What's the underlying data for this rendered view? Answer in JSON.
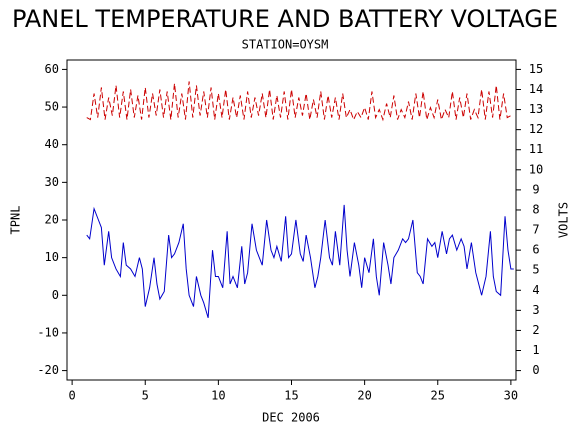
{
  "chart_data": {
    "type": "line",
    "title": "PANEL TEMPERATURE AND BATTERY VOLTAGE",
    "subtitle": "STATION=OYSM",
    "x_label": "DEC 2006",
    "y_label": "TPNL",
    "y2_label": "VOLTS",
    "xlim": [
      -0.35,
      30.35
    ],
    "xticks": [
      0,
      5,
      10,
      15,
      20,
      25,
      30
    ],
    "ylim": [
      -22.5,
      62.5
    ],
    "yticks": [
      -20,
      -10,
      0,
      10,
      20,
      30,
      40,
      50,
      60
    ],
    "y2lim": [
      -0.46875,
      15.46875
    ],
    "y2ticks": [
      0,
      1,
      2,
      3,
      4,
      5,
      6,
      7,
      8,
      9,
      10,
      11,
      12,
      13,
      14,
      15
    ],
    "series": [
      {
        "name": "TPNL",
        "color": "#0000cc",
        "axis": "y",
        "x": [
          1,
          1.2,
          1.5,
          1.8,
          2,
          2.2,
          2.5,
          2.7,
          3,
          3.3,
          3.5,
          3.7,
          4,
          4.3,
          4.6,
          4.8,
          5,
          5.3,
          5.6,
          5.8,
          6,
          6.3,
          6.6,
          6.8,
          7,
          7.3,
          7.6,
          7.8,
          8,
          8.3,
          8.5,
          8.8,
          9,
          9.3,
          9.6,
          9.8,
          10,
          10.3,
          10.6,
          10.8,
          11,
          11.3,
          11.6,
          11.8,
          12,
          12.3,
          12.6,
          12.8,
          13,
          13.3,
          13.6,
          13.8,
          14,
          14.3,
          14.6,
          14.8,
          15,
          15.3,
          15.6,
          15.8,
          16,
          16.3,
          16.6,
          16.8,
          17,
          17.3,
          17.6,
          17.8,
          18,
          18.3,
          18.6,
          18.8,
          19,
          19.3,
          19.6,
          19.8,
          20,
          20.3,
          20.6,
          20.8,
          21,
          21.3,
          21.6,
          21.8,
          22,
          22.3,
          22.6,
          22.8,
          23,
          23.3,
          23.6,
          23.8,
          24,
          24.3,
          24.6,
          24.8,
          25,
          25.3,
          25.6,
          25.8,
          26,
          26.3,
          26.6,
          26.8,
          27,
          27.3,
          27.6,
          27.8,
          28,
          28.3,
          28.6,
          28.8,
          29,
          29.3,
          29.6,
          29.8,
          30,
          30.2
        ],
        "values": [
          16,
          15,
          23,
          20,
          18,
          8,
          17,
          10,
          7,
          5,
          14,
          8,
          7,
          5,
          10,
          7,
          -3,
          2,
          10,
          3,
          -1,
          1,
          16,
          10,
          11,
          14,
          19,
          7,
          0,
          -3,
          5,
          0,
          -2,
          -6,
          12,
          5,
          5,
          2,
          17,
          3,
          5,
          2,
          13,
          3,
          6,
          19,
          12,
          10,
          8,
          20,
          12,
          10,
          13,
          9,
          21,
          10,
          11,
          20,
          11,
          9,
          16,
          10,
          2,
          5,
          10,
          20,
          10,
          8,
          17,
          8,
          24,
          12,
          5,
          14,
          8,
          2,
          10,
          6,
          15,
          5,
          0,
          14,
          8,
          3,
          10,
          12,
          15,
          14,
          15,
          20,
          6,
          5,
          3,
          15,
          13,
          14,
          10,
          17,
          11,
          15,
          16,
          12,
          15,
          13,
          7,
          14,
          6,
          3,
          0,
          5,
          17,
          5,
          1,
          0,
          21,
          12,
          7,
          7
        ]
      },
      {
        "name": "VOLTS",
        "color": "#cc0000",
        "axis": "y2",
        "dashed": true,
        "x": [
          1,
          1.25,
          1.5,
          1.75,
          2,
          2.25,
          2.5,
          2.75,
          3,
          3.25,
          3.5,
          3.75,
          4,
          4.25,
          4.5,
          4.75,
          5,
          5.25,
          5.5,
          5.75,
          6,
          6.25,
          6.5,
          6.75,
          7,
          7.25,
          7.5,
          7.75,
          8,
          8.25,
          8.5,
          8.75,
          9,
          9.25,
          9.5,
          9.75,
          10,
          10.25,
          10.5,
          10.75,
          11,
          11.25,
          11.5,
          11.75,
          12,
          12.25,
          12.5,
          12.75,
          13,
          13.25,
          13.5,
          13.75,
          14,
          14.25,
          14.5,
          14.75,
          15,
          15.25,
          15.5,
          15.75,
          16,
          16.25,
          16.5,
          16.75,
          17,
          17.25,
          17.5,
          17.75,
          18,
          18.25,
          18.5,
          18.75,
          19,
          19.25,
          19.5,
          19.75,
          20,
          20.25,
          20.5,
          20.75,
          21,
          21.25,
          21.5,
          21.75,
          22,
          22.25,
          22.5,
          22.75,
          23,
          23.25,
          23.5,
          23.75,
          24,
          24.25,
          24.5,
          24.75,
          25,
          25.25,
          25.5,
          25.75,
          26,
          26.25,
          26.5,
          26.75,
          27,
          27.25,
          27.5,
          27.75,
          28,
          28.25,
          28.5,
          28.75,
          29,
          29.25,
          29.5,
          29.75,
          30
        ],
        "values": [
          12.6,
          12.5,
          13.8,
          12.6,
          14.1,
          12.5,
          13.6,
          12.7,
          14.2,
          12.6,
          13.9,
          12.5,
          14.0,
          12.6,
          13.7,
          12.5,
          14.1,
          12.6,
          13.8,
          12.7,
          14.0,
          12.6,
          13.9,
          12.5,
          14.3,
          12.6,
          13.8,
          12.5,
          14.4,
          12.6,
          14.2,
          12.7,
          13.9,
          12.6,
          14.1,
          12.5,
          13.8,
          12.6,
          14.0,
          12.5,
          13.6,
          12.6,
          13.7,
          12.5,
          13.9,
          12.6,
          13.6,
          12.7,
          13.8,
          12.6,
          14.0,
          12.5,
          13.7,
          12.6,
          13.9,
          12.5,
          14.0,
          12.6,
          13.6,
          12.7,
          13.8,
          12.5,
          13.5,
          12.6,
          13.9,
          12.5,
          13.7,
          12.6,
          13.6,
          12.5,
          13.8,
          12.6,
          13.0,
          12.5,
          12.9,
          12.6,
          13.1,
          12.5,
          13.9,
          12.6,
          13.0,
          12.5,
          13.3,
          12.6,
          13.7,
          12.5,
          13.0,
          12.6,
          13.4,
          12.5,
          13.8,
          12.6,
          13.9,
          12.5,
          13.1,
          12.6,
          13.5,
          12.5,
          13.0,
          12.6,
          13.9,
          12.5,
          13.6,
          12.6,
          13.8,
          12.5,
          13.0,
          12.6,
          14.0,
          12.5,
          13.9,
          12.6,
          14.2,
          12.5,
          13.8,
          12.6,
          12.7
        ]
      }
    ]
  }
}
